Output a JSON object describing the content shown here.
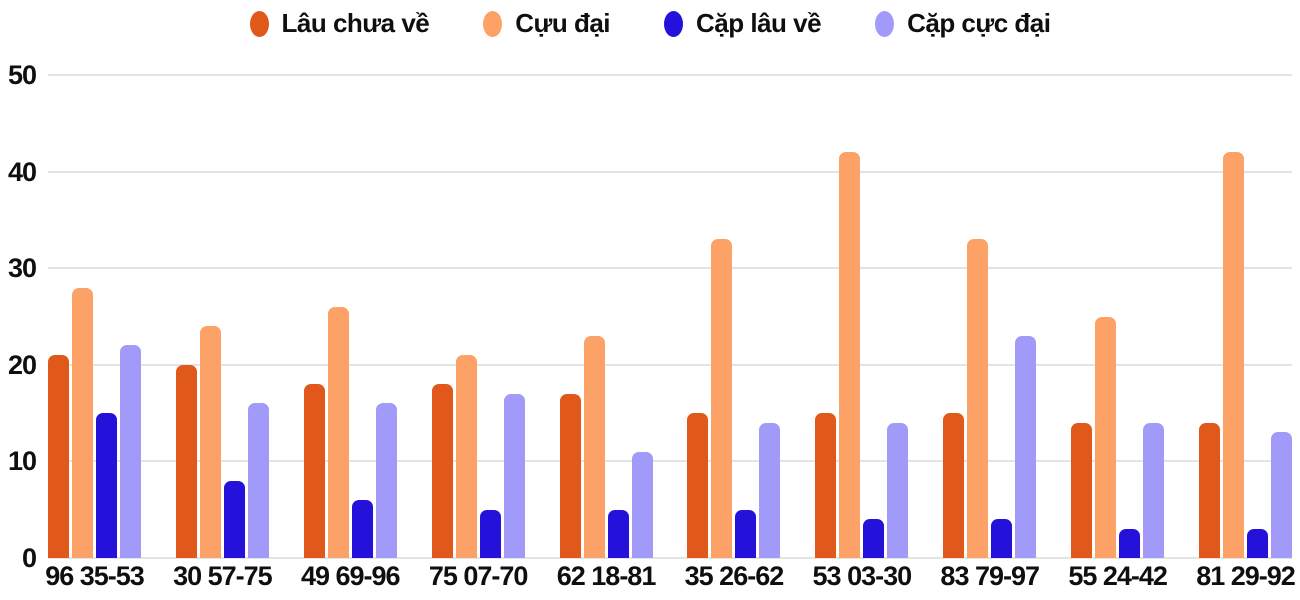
{
  "colors": {
    "background": "#ffffff",
    "grid": "#e4e4e4",
    "text": "#0f0f0f"
  },
  "chart_data": {
    "type": "bar",
    "title": "",
    "xlabel": "",
    "ylabel": "",
    "categories": [
      "96 35-53",
      "30 57-75",
      "49 69-96",
      "75 07-70",
      "62 18-81",
      "35 26-62",
      "53 03-30",
      "83 79-97",
      "55 24-42",
      "81 29-92"
    ],
    "series": [
      {
        "name": "Lâu chưa về",
        "color": "#e0591b",
        "values": [
          21,
          20,
          18,
          18,
          17,
          15,
          15,
          15,
          14,
          14
        ]
      },
      {
        "name": "Cựu đại",
        "color": "#fca266",
        "values": [
          28,
          24,
          26,
          21,
          23,
          33,
          42,
          33,
          25,
          42
        ]
      },
      {
        "name": "Cặp lâu về",
        "color": "#2412db",
        "values": [
          15,
          8,
          6,
          5,
          5,
          5,
          4,
          4,
          3,
          3
        ]
      },
      {
        "name": "Cặp cực đại",
        "color": "#a29af9",
        "values": [
          22,
          16,
          16,
          17,
          11,
          14,
          14,
          23,
          14,
          13
        ]
      }
    ],
    "ylim": [
      0,
      50
    ],
    "y_ticks": [
      0,
      10,
      20,
      30,
      40,
      50
    ],
    "grid": true,
    "legend_position": "top-center"
  }
}
